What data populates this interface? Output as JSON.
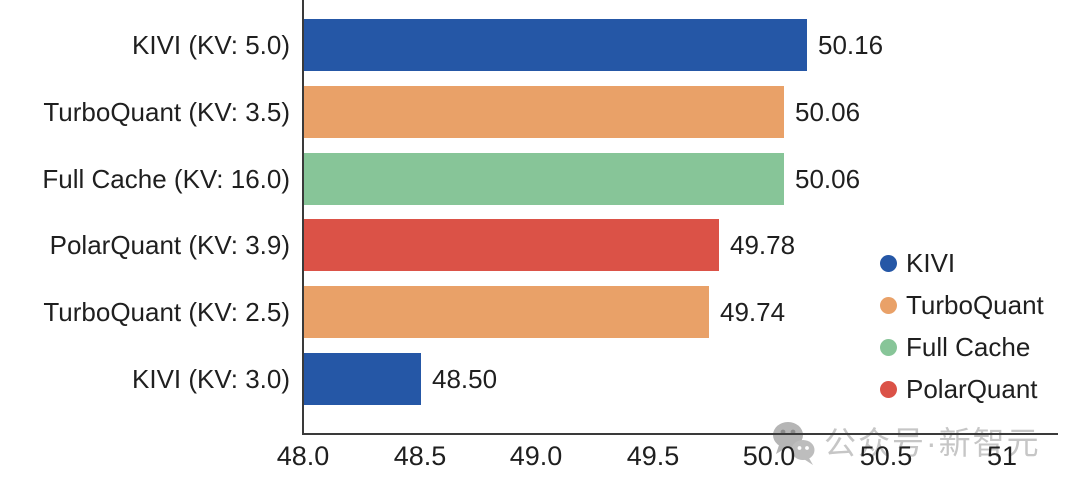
{
  "chart_data": {
    "type": "bar",
    "orientation": "horizontal",
    "categories": [
      "KIVI (KV: 5.0)",
      "TurboQuant (KV: 3.5)",
      "Full Cache (KV: 16.0)",
      "PolarQuant (KV: 3.9)",
      "TurboQuant (KV: 2.5)",
      "KIVI (KV: 3.0)"
    ],
    "values": [
      50.16,
      50.06,
      50.06,
      49.78,
      49.74,
      48.5
    ],
    "value_labels": [
      "50.16",
      "50.06",
      "50.06",
      "49.78",
      "49.74",
      "48.50"
    ],
    "bar_series": [
      "KIVI",
      "TurboQuant",
      "Full Cache",
      "PolarQuant",
      "TurboQuant",
      "KIVI"
    ],
    "series_colors": {
      "KIVI": "#2557A6",
      "TurboQuant": "#E9A168",
      "Full Cache": "#87C598",
      "PolarQuant": "#DB5247"
    },
    "xlim": [
      48.0,
      51.25
    ],
    "x_tick_labels": [
      "48.0",
      "48.5",
      "49.0",
      "49.5",
      "50.0",
      "50.5",
      "51"
    ],
    "x_tick_values": [
      48.0,
      48.5,
      49.0,
      49.5,
      50.0,
      50.5,
      51.0
    ],
    "grid": false,
    "legend": {
      "position": "lower right",
      "entries": [
        {
          "label": "KIVI",
          "color": "#2557A6"
        },
        {
          "label": "TurboQuant",
          "color": "#E9A168"
        },
        {
          "label": "Full Cache",
          "color": "#87C598"
        },
        {
          "label": "PolarQuant",
          "color": "#DB5247"
        }
      ]
    }
  },
  "watermark": {
    "icon": "wechat-icon",
    "text": "公众号·新智元"
  },
  "style": {
    "axis_color": "#3a3a3a",
    "text_color": "#1f1f1f",
    "watermark_color": "#c6c6c6",
    "background": "#ffffff"
  }
}
